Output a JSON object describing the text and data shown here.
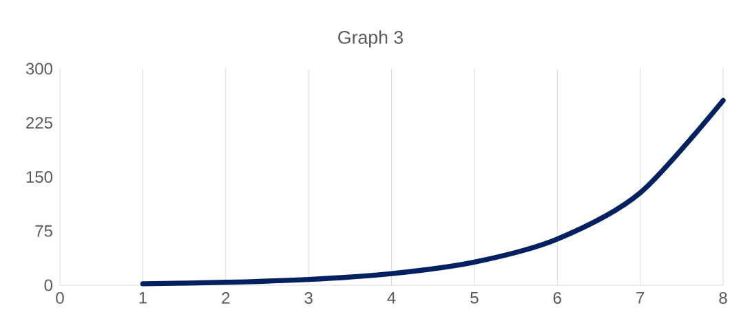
{
  "chart_data": {
    "type": "line",
    "title": "Graph 3",
    "x": [
      1,
      2,
      3,
      4,
      5,
      6,
      7,
      8
    ],
    "series": [
      {
        "color": "#002060",
        "values": [
          2,
          4,
          8,
          16,
          32,
          64,
          128,
          256
        ]
      }
    ],
    "xlim": [
      0,
      8
    ],
    "xticks": [
      0,
      1,
      2,
      3,
      4,
      5,
      6,
      7,
      8
    ],
    "ylim": [
      0,
      300
    ],
    "yticks": [
      0,
      75,
      150,
      225,
      300
    ],
    "grid": "x",
    "marker": "none",
    "line_style": "solid"
  }
}
